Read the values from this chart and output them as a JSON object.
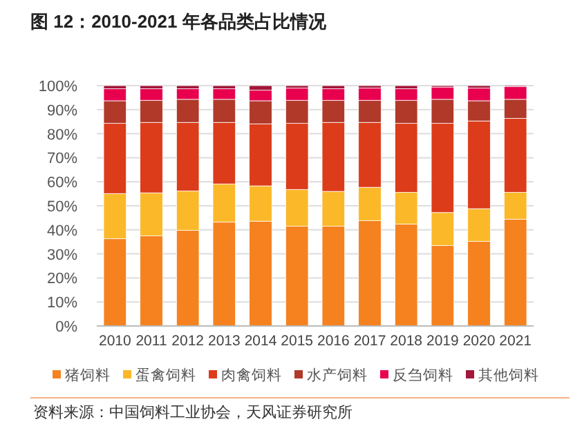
{
  "chart_data": {
    "type": "bar",
    "stacked": true,
    "title": "图 12：2010-2021 年各品类占比情况",
    "categories": [
      "2010",
      "2011",
      "2012",
      "2013",
      "2014",
      "2015",
      "2016",
      "2017",
      "2018",
      "2019",
      "2020",
      "2021"
    ],
    "series": [
      {
        "name": "猪饲料",
        "color": "#f5821f",
        "values": [
          36.3,
          37.5,
          39.8,
          43.2,
          43.6,
          41.5,
          41.5,
          43.8,
          42.4,
          33.5,
          35.2,
          44.4
        ]
      },
      {
        "name": "蛋禽饲料",
        "color": "#fbb829",
        "values": [
          18.8,
          17.9,
          16.4,
          15.9,
          14.7,
          15.3,
          14.5,
          13.9,
          13.2,
          13.7,
          13.6,
          11.2
        ]
      },
      {
        "name": "肉禽饲料",
        "color": "#dc3c1a",
        "values": [
          29.2,
          29.3,
          28.5,
          25.6,
          25.8,
          27.5,
          28.7,
          27.0,
          28.7,
          37.1,
          36.5,
          30.8
        ]
      },
      {
        "name": "水产饲料",
        "color": "#b0392a",
        "values": [
          9.4,
          9.2,
          9.6,
          9.6,
          9.6,
          9.6,
          9.2,
          9.2,
          9.6,
          10.0,
          8.4,
          7.9
        ]
      },
      {
        "name": "反刍饲料",
        "color": "#e8004f",
        "values": [
          5.0,
          4.8,
          4.4,
          4.4,
          4.4,
          5.1,
          4.8,
          5.1,
          4.8,
          5.1,
          5.3,
          5.3
        ]
      },
      {
        "name": "其他饲料",
        "color": "#a3173a",
        "values": [
          1.3,
          1.3,
          1.3,
          1.3,
          1.9,
          1.0,
          1.3,
          1.0,
          1.3,
          0.6,
          1.0,
          0.4
        ]
      }
    ],
    "ylim": [
      0,
      100
    ],
    "yticks": [
      {
        "value": 0,
        "label": "0%"
      },
      {
        "value": 10,
        "label": "10%"
      },
      {
        "value": 20,
        "label": "20%"
      },
      {
        "value": 30,
        "label": "30%"
      },
      {
        "value": 40,
        "label": "40%"
      },
      {
        "value": 50,
        "label": "50%"
      },
      {
        "value": 60,
        "label": "60%"
      },
      {
        "value": 70,
        "label": "70%"
      },
      {
        "value": 80,
        "label": "80%"
      },
      {
        "value": 90,
        "label": "90%"
      },
      {
        "value": 100,
        "label": "100%"
      }
    ],
    "grid": "y",
    "legend": "bottom",
    "annotations": [
      "资料来源：中国饲料工业协会，天风证券研究所"
    ]
  }
}
